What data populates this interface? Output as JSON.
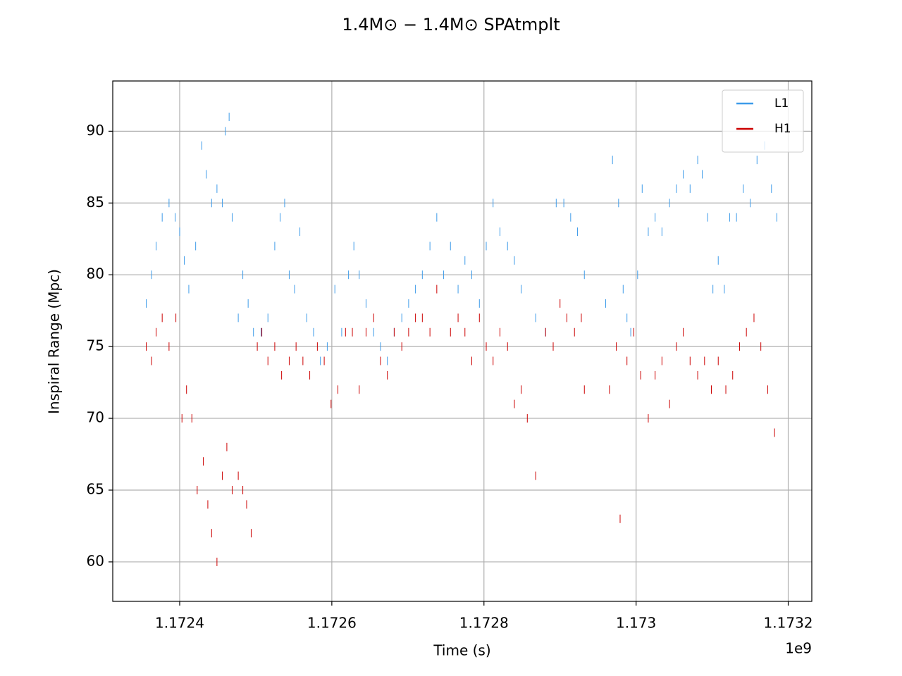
{
  "chart_data": {
    "type": "scatter",
    "title": "1.4M⊙ − 1.4M⊙ SPAtmplt",
    "x_label": "Time (s)",
    "y_label": "Inspiral Range (Mpc)",
    "x_offset_label": "1e9",
    "xlim": [
      1.172312,
      1.173231
    ],
    "ylim": [
      57.25,
      93.5
    ],
    "xticks": [
      1.1724,
      1.1726,
      1.1728,
      1.173,
      1.1732
    ],
    "yticks": [
      60,
      65,
      70,
      75,
      80,
      85,
      90
    ],
    "grid": true,
    "legend": "upper right",
    "series": [
      {
        "name": "L1",
        "color": "#3d9be9",
        "x": [
          1.172356,
          1.172363,
          1.172369,
          1.172377,
          1.172386,
          1.172394,
          1.1724,
          1.172406,
          1.172412,
          1.172421,
          1.172429,
          1.172435,
          1.172442,
          1.172449,
          1.172456,
          1.17246,
          1.172465,
          1.172469,
          1.172477,
          1.172483,
          1.17249,
          1.172497,
          1.172507,
          1.172516,
          1.172525,
          1.172532,
          1.172538,
          1.172544,
          1.172551,
          1.172558,
          1.172567,
          1.172576,
          1.172585,
          1.172594,
          1.172604,
          1.172613,
          1.172622,
          1.172629,
          1.172636,
          1.172645,
          1.172655,
          1.172664,
          1.172673,
          1.172682,
          1.172692,
          1.172701,
          1.17271,
          1.172719,
          1.172729,
          1.172738,
          1.172747,
          1.172756,
          1.172766,
          1.172775,
          1.172784,
          1.172794,
          1.172803,
          1.172812,
          1.172821,
          1.172831,
          1.17284,
          1.172849,
          1.172868,
          1.172881,
          1.172895,
          1.172905,
          1.172914,
          1.172923,
          1.172932,
          1.17296,
          1.172969,
          1.172977,
          1.172983,
          1.172988,
          1.172993,
          1.173002,
          1.173008,
          1.173016,
          1.173025,
          1.173034,
          1.173044,
          1.173053,
          1.173062,
          1.173071,
          1.173081,
          1.173087,
          1.173094,
          1.173101,
          1.173108,
          1.173116,
          1.173123,
          1.173132,
          1.173141,
          1.17315,
          1.173159,
          1.173169,
          1.173178,
          1.173185
        ],
        "values": [
          78,
          80,
          82,
          84,
          85,
          84,
          83,
          81,
          79,
          82,
          89,
          87,
          85,
          86,
          85,
          90,
          91,
          84,
          77,
          80,
          78,
          76,
          76,
          77,
          82,
          84,
          85,
          80,
          79,
          83,
          77,
          76,
          74,
          75,
          79,
          76,
          80,
          82,
          80,
          78,
          76,
          75,
          74,
          76,
          77,
          78,
          79,
          80,
          82,
          84,
          80,
          82,
          79,
          81,
          80,
          78,
          82,
          85,
          83,
          82,
          81,
          79,
          77,
          76,
          85,
          85,
          84,
          83,
          80,
          78,
          88,
          85,
          79,
          77,
          76,
          80,
          86,
          83,
          84,
          83,
          85,
          86,
          87,
          86,
          88,
          87,
          84,
          79,
          81,
          79,
          84,
          84,
          86,
          85,
          88,
          89,
          86,
          84
        ]
      },
      {
        "name": "H1",
        "color": "#cc0000",
        "x": [
          1.172356,
          1.172363,
          1.172369,
          1.172377,
          1.172386,
          1.172395,
          1.172403,
          1.172409,
          1.172416,
          1.172423,
          1.172431,
          1.172437,
          1.172442,
          1.172449,
          1.172456,
          1.172462,
          1.172469,
          1.172477,
          1.172483,
          1.172488,
          1.172494,
          1.172502,
          1.172508,
          1.172516,
          1.172525,
          1.172534,
          1.172544,
          1.172553,
          1.172562,
          1.172571,
          1.172581,
          1.17259,
          1.172599,
          1.172608,
          1.172618,
          1.172627,
          1.172636,
          1.172645,
          1.172655,
          1.172664,
          1.172673,
          1.172682,
          1.172692,
          1.172701,
          1.17271,
          1.172719,
          1.172729,
          1.172738,
          1.172756,
          1.172766,
          1.172775,
          1.172784,
          1.172794,
          1.172803,
          1.172812,
          1.172821,
          1.172831,
          1.17284,
          1.172849,
          1.172857,
          1.172868,
          1.172881,
          1.172891,
          1.1729,
          1.172909,
          1.172919,
          1.172928,
          1.172932,
          1.172965,
          1.172974,
          1.172979,
          1.172988,
          1.172997,
          1.173006,
          1.173016,
          1.173025,
          1.173034,
          1.173044,
          1.173053,
          1.173062,
          1.173071,
          1.173081,
          1.17309,
          1.173099,
          1.173108,
          1.173118,
          1.173127,
          1.173136,
          1.173145,
          1.173155,
          1.173164,
          1.173173,
          1.173182
        ],
        "values": [
          75,
          74,
          76,
          77,
          75,
          77,
          70,
          72,
          70,
          65,
          67,
          64,
          62,
          60,
          66,
          68,
          65,
          66,
          65,
          64,
          62,
          75,
          76,
          74,
          75,
          73,
          74,
          75,
          74,
          73,
          75,
          74,
          71,
          72,
          76,
          76,
          72,
          76,
          77,
          74,
          73,
          76,
          75,
          76,
          77,
          77,
          76,
          79,
          76,
          77,
          76,
          74,
          77,
          75,
          74,
          76,
          75,
          71,
          72,
          70,
          66,
          76,
          75,
          78,
          77,
          76,
          77,
          72,
          72,
          75,
          63,
          74,
          76,
          73,
          70,
          73,
          74,
          71,
          75,
          76,
          74,
          73,
          74,
          72,
          74,
          72,
          73,
          75,
          76,
          77,
          75,
          72,
          69
        ]
      }
    ]
  }
}
